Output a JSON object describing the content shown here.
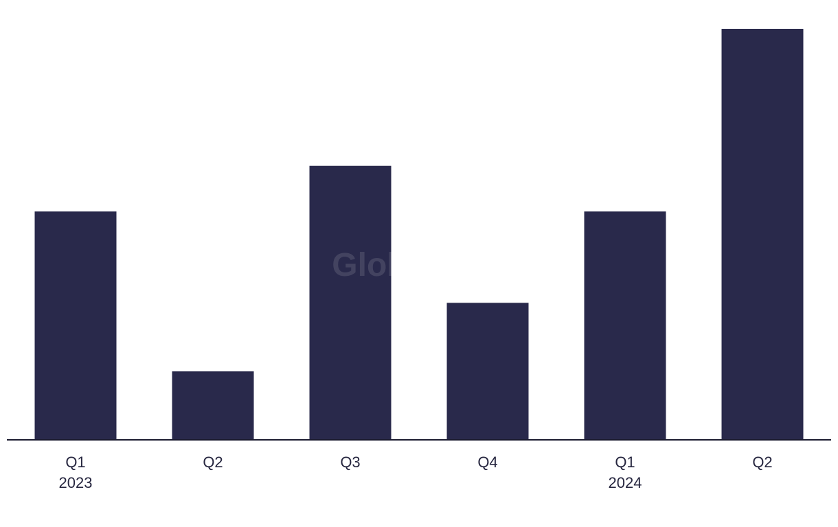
{
  "watermark": "GlobalData",
  "chart_data": {
    "type": "bar",
    "categories": [
      "Q1",
      "Q2",
      "Q3",
      "Q4",
      "Q1",
      "Q2"
    ],
    "category_groups": [
      "2023",
      "",
      "",
      "",
      "2024",
      ""
    ],
    "values": [
      5,
      1.5,
      6,
      3,
      5,
      9
    ],
    "title": "",
    "xlabel": "",
    "ylabel": "",
    "ylim": [
      0,
      9
    ],
    "grid": false,
    "legend": "none",
    "bar_color": "#29294b",
    "axis_color": "#1a1a2e",
    "text_color": "#26263f"
  }
}
